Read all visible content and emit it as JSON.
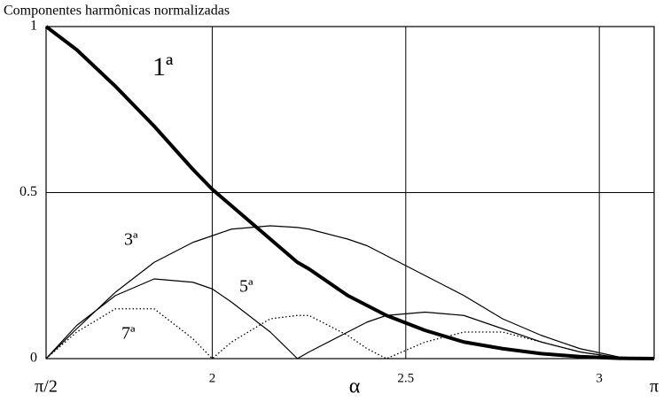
{
  "chart_data": {
    "type": "line",
    "title": "Componentes harmônicas normalizadas",
    "x_label": "α",
    "x": [
      1.5708,
      1.65,
      1.75,
      1.85,
      1.95,
      2.0,
      2.05,
      2.15,
      2.22,
      2.25,
      2.35,
      2.4,
      2.45,
      2.55,
      2.65,
      2.75,
      2.85,
      2.95,
      3.05,
      3.1416
    ],
    "series": [
      {
        "name": "1ª",
        "color": "#000000",
        "style": "thick",
        "values": [
          1,
          0.93,
          0.82,
          0.7,
          0.57,
          0.51,
          0.46,
          0.36,
          0.29,
          0.27,
          0.19,
          0.16,
          0.13,
          0.085,
          0.05,
          0.03,
          0.015,
          0.006,
          0.001,
          0
        ]
      },
      {
        "name": "3ª",
        "color": "#000000",
        "style": "thin",
        "values": [
          0,
          0.09,
          0.2,
          0.29,
          0.35,
          0.37,
          0.39,
          0.4,
          0.395,
          0.39,
          0.36,
          0.34,
          0.31,
          0.25,
          0.19,
          0.12,
          0.07,
          0.03,
          0.005,
          0
        ]
      },
      {
        "name": "5ª",
        "color": "#000000",
        "style": "thin",
        "values": [
          0,
          0.1,
          0.19,
          0.24,
          0.23,
          0.21,
          0.17,
          0.08,
          0,
          0.02,
          0.08,
          0.11,
          0.13,
          0.14,
          0.13,
          0.09,
          0.05,
          0.02,
          0.003,
          0
        ]
      },
      {
        "name": "7ª",
        "color": "#000000",
        "style": "dotted",
        "values": [
          0,
          0.08,
          0.15,
          0.15,
          0.06,
          0,
          0.05,
          0.12,
          0.13,
          0.13,
          0.07,
          0.03,
          0,
          0.05,
          0.08,
          0.08,
          0.05,
          0.02,
          0.003,
          0
        ]
      }
    ],
    "xlim": [
      1.5708,
      3.1416
    ],
    "xticks": [
      {
        "value": 1.5708,
        "label": "π/2"
      },
      2,
      2.5,
      3,
      {
        "value": 3.1416,
        "label": "π"
      }
    ],
    "ylim": [
      0,
      1
    ],
    "yticks": [
      0,
      0.5,
      1
    ],
    "grid": true
  }
}
